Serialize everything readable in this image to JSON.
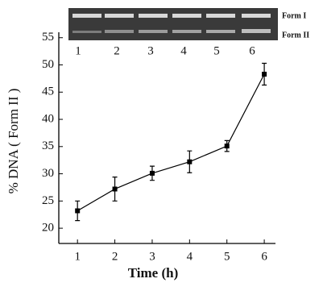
{
  "chart_data": {
    "type": "line",
    "x_label": "Time  (h)",
    "y_label": "% DNA ( Form II )",
    "x": [
      1,
      2,
      3,
      4,
      5,
      6
    ],
    "series": [
      {
        "color": "#000000",
        "values": [
          23.2,
          27.2,
          30.1,
          32.2,
          35.1,
          48.3
        ],
        "errors": [
          1.8,
          2.2,
          1.3,
          2.0,
          1.0,
          2.0
        ]
      }
    ],
    "xlim": [
      0.5,
      6.3
    ],
    "ylim": [
      17.2,
      56
    ],
    "xticks": [
      1,
      2,
      3,
      4,
      5,
      6
    ],
    "yticks": [
      20,
      25,
      30,
      35,
      40,
      45,
      50,
      55
    ],
    "inset": {
      "lanes": [
        "1",
        "2",
        "3",
        "4",
        "5",
        "6"
      ],
      "bands": [
        "Form I",
        "Form II"
      ]
    }
  }
}
